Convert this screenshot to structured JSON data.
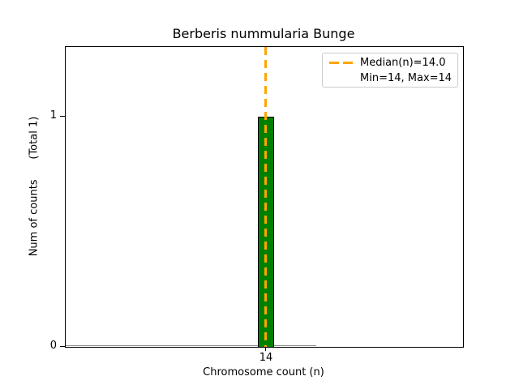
{
  "chart_data": {
    "type": "bar",
    "title": "Berberis nummularia Bunge",
    "xlabel": "Chromosome count (n)",
    "ylabel": "Num of counts      (Total 1)",
    "categories": [
      14
    ],
    "values": [
      1
    ],
    "total_counts": 1,
    "xtick_labels": [
      "14"
    ],
    "ytick_labels": [
      "0",
      "1"
    ],
    "ylim": [
      0,
      1.3
    ],
    "grid": false,
    "bar_color": "#008000",
    "bar_edge_color": "#000000",
    "median_line": {
      "x": 14.0,
      "color": "#FFA500",
      "style": "dashed",
      "orientation": "vertical"
    },
    "stats": {
      "median": 14.0,
      "min": 14,
      "max": 14
    },
    "legend": {
      "position": "upper right",
      "entries": [
        {
          "label": "Median(n)=14.0",
          "marker": "orange-dashed-line"
        },
        {
          "label": "Min=14, Max=14",
          "marker": "none"
        }
      ]
    }
  }
}
